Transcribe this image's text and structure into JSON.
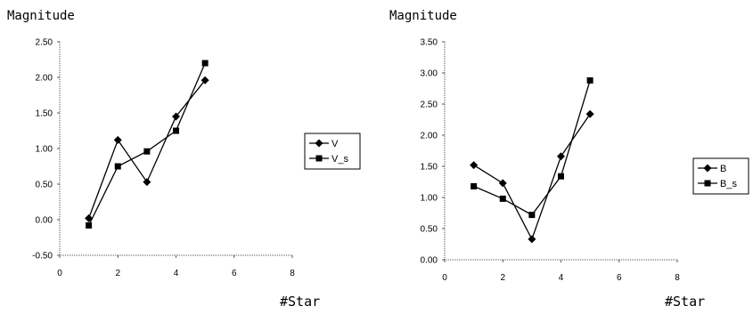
{
  "chart_data": [
    {
      "type": "line",
      "title": "",
      "xlabel": "#Star",
      "ylabel": "Magnitude",
      "xlim": [
        0,
        8
      ],
      "ylim": [
        -0.5,
        2.5
      ],
      "xticks": [
        "0",
        "2",
        "4",
        "6",
        "8"
      ],
      "yticks": [
        "-0.50",
        "0.00",
        "0.50",
        "1.00",
        "1.50",
        "2.00",
        "2.50"
      ],
      "grid": false,
      "legend": "right",
      "series": [
        {
          "name": "V",
          "marker": "diamond",
          "x": [
            1,
            2,
            3,
            4,
            5
          ],
          "y": [
            0.02,
            1.12,
            0.53,
            1.45,
            1.96
          ]
        },
        {
          "name": "V_s",
          "marker": "square",
          "x": [
            1,
            2,
            3,
            4,
            5
          ],
          "y": [
            -0.08,
            0.75,
            0.96,
            1.25,
            2.2
          ]
        }
      ]
    },
    {
      "type": "line",
      "title": "",
      "xlabel": "#Star",
      "ylabel": "Magnitude",
      "xlim": [
        0,
        8
      ],
      "ylim": [
        0,
        3.5
      ],
      "xticks": [
        "0",
        "2",
        "4",
        "6",
        "8"
      ],
      "yticks": [
        "0.00",
        "0.50",
        "1.00",
        "1.50",
        "2.00",
        "2.50",
        "3.00",
        "3.50"
      ],
      "grid": false,
      "legend": "right",
      "series": [
        {
          "name": "B",
          "marker": "diamond",
          "x": [
            1,
            2,
            3,
            4,
            5
          ],
          "y": [
            1.52,
            1.23,
            0.33,
            1.66,
            2.34
          ]
        },
        {
          "name": "B_s",
          "marker": "square",
          "x": [
            1,
            2,
            3,
            4,
            5
          ],
          "y": [
            1.18,
            0.98,
            0.72,
            1.34,
            2.88
          ]
        }
      ]
    }
  ]
}
